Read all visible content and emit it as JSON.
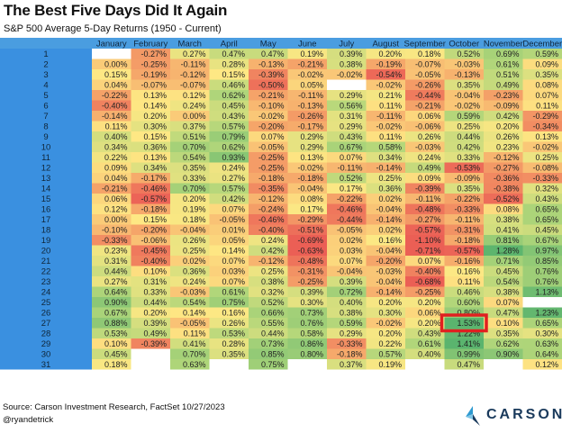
{
  "title": "The Best Five Days Did It Again",
  "subtitle": "S&P 500 Average 5-Day Returns (1950 - Current)",
  "footer": {
    "source": "Source: Carson Investment Research, FactSet 10/27/2023",
    "handle": "@ryandetrick",
    "logo_text": "CARSON"
  },
  "colors": {
    "header_bg": "#4a9de0",
    "daycol_bg": "#3a90e0",
    "highlight_border": "#e02020"
  },
  "chart_data": {
    "type": "heatmap",
    "title": "The Best Five Days Did It Again",
    "subtitle": "S&P 500 Average 5-Day Returns (1950 - Current)",
    "months": [
      "January",
      "February",
      "March",
      "April",
      "May",
      "June",
      "July",
      "August",
      "September",
      "October",
      "November",
      "December"
    ],
    "days": [
      "1",
      "2",
      "3",
      "4",
      "5",
      "6",
      "7",
      "8",
      "9",
      "10",
      "11",
      "12",
      "13",
      "14",
      "15",
      "16",
      "17",
      "18",
      "19",
      "20",
      "21",
      "22",
      "23",
      "24",
      "25",
      "26",
      "27",
      "28",
      "29",
      "30",
      "31"
    ],
    "values": [
      [
        null,
        -0.27,
        0.27,
        0.47,
        0.47,
        0.19,
        0.39,
        0.2,
        0.18,
        0.52,
        0.69,
        0.59
      ],
      [
        0.0,
        -0.25,
        -0.11,
        0.28,
        -0.13,
        -0.21,
        0.38,
        -0.19,
        -0.07,
        -0.03,
        0.61,
        0.09
      ],
      [
        0.15,
        -0.19,
        -0.12,
        0.15,
        -0.39,
        -0.02,
        -0.02,
        -0.54,
        -0.05,
        -0.13,
        0.51,
        0.35
      ],
      [
        0.04,
        -0.07,
        -0.07,
        0.46,
        -0.5,
        0.05,
        null,
        -0.02,
        -0.26,
        0.35,
        0.49,
        0.08
      ],
      [
        -0.22,
        0.13,
        0.12,
        0.62,
        -0.21,
        -0.11,
        0.29,
        0.21,
        -0.44,
        -0.04,
        -0.23,
        0.07
      ],
      [
        -0.4,
        0.14,
        0.24,
        0.45,
        -0.1,
        -0.13,
        0.56,
        0.11,
        -0.21,
        -0.02,
        -0.09,
        0.11
      ],
      [
        -0.14,
        0.2,
        0.0,
        0.43,
        -0.02,
        -0.26,
        0.31,
        -0.11,
        0.06,
        0.59,
        0.42,
        -0.29
      ],
      [
        0.11,
        0.3,
        0.37,
        0.57,
        -0.2,
        -0.17,
        0.29,
        -0.02,
        -0.06,
        0.25,
        0.2,
        -0.34
      ],
      [
        0.4,
        0.15,
        0.51,
        0.79,
        0.07,
        0.29,
        0.43,
        0.11,
        0.26,
        0.44,
        0.26,
        0.13
      ],
      [
        0.34,
        0.36,
        0.7,
        0.62,
        -0.05,
        0.29,
        0.67,
        0.58,
        -0.03,
        0.42,
        0.23,
        -0.02
      ],
      [
        0.22,
        0.13,
        0.54,
        0.93,
        -0.25,
        0.13,
        0.07,
        0.34,
        0.24,
        0.33,
        -0.12,
        0.25
      ],
      [
        0.09,
        0.34,
        0.35,
        0.24,
        -0.25,
        -0.02,
        -0.11,
        -0.14,
        0.49,
        -0.53,
        -0.27,
        -0.08
      ],
      [
        0.04,
        -0.17,
        0.33,
        0.27,
        -0.18,
        -0.18,
        0.52,
        0.25,
        0.09,
        -0.09,
        -0.36,
        -0.33
      ],
      [
        -0.21,
        -0.46,
        0.7,
        0.57,
        -0.35,
        -0.04,
        0.17,
        0.36,
        -0.39,
        0.35,
        -0.38,
        0.32
      ],
      [
        0.06,
        -0.57,
        0.2,
        0.42,
        -0.12,
        0.08,
        -0.22,
        0.02,
        -0.11,
        -0.22,
        -0.52,
        0.43
      ],
      [
        0.12,
        -0.18,
        0.19,
        0.07,
        -0.24,
        0.17,
        -0.46,
        -0.04,
        -0.48,
        -0.33,
        0.08,
        0.65
      ],
      [
        0.0,
        0.15,
        0.18,
        -0.05,
        -0.46,
        -0.29,
        -0.44,
        -0.14,
        -0.27,
        -0.11,
        0.38,
        0.65
      ],
      [
        -0.1,
        -0.2,
        -0.04,
        0.01,
        -0.4,
        -0.51,
        -0.05,
        0.02,
        -0.57,
        -0.31,
        0.41,
        0.45
      ],
      [
        -0.33,
        -0.06,
        0.26,
        0.05,
        0.24,
        -0.69,
        0.02,
        0.16,
        -1.1,
        -0.18,
        0.81,
        0.67
      ],
      [
        0.23,
        -0.45,
        0.25,
        0.14,
        0.42,
        -0.63,
        0.03,
        -0.04,
        -0.71,
        -0.57,
        1.28,
        0.97
      ],
      [
        0.31,
        -0.4,
        0.02,
        0.07,
        -0.12,
        -0.48,
        0.07,
        -0.2,
        0.07,
        -0.16,
        0.71,
        0.85
      ],
      [
        0.44,
        0.1,
        0.36,
        0.03,
        0.25,
        -0.31,
        -0.04,
        -0.03,
        -0.4,
        0.16,
        0.45,
        0.76
      ],
      [
        0.27,
        0.31,
        0.24,
        0.07,
        0.38,
        -0.25,
        0.39,
        -0.04,
        -0.68,
        0.11,
        0.54,
        0.76
      ],
      [
        0.64,
        0.33,
        -0.03,
        0.61,
        0.32,
        0.39,
        0.72,
        -0.14,
        -0.25,
        0.46,
        0.38,
        1.13
      ],
      [
        0.9,
        0.44,
        0.54,
        0.75,
        0.52,
        0.3,
        0.4,
        0.2,
        0.2,
        0.6,
        0.07,
        null
      ],
      [
        0.67,
        0.2,
        0.14,
        0.16,
        0.66,
        0.73,
        0.38,
        0.3,
        0.06,
        0.8,
        0.47,
        1.23
      ],
      [
        0.88,
        0.39,
        -0.05,
        0.26,
        0.55,
        0.76,
        0.59,
        -0.02,
        0.2,
        1.53,
        0.1,
        0.65
      ],
      [
        0.53,
        0.49,
        0.11,
        0.53,
        0.44,
        0.58,
        0.29,
        0.2,
        0.43,
        1.22,
        0.35,
        0.3
      ],
      [
        0.1,
        -0.39,
        0.41,
        0.28,
        0.73,
        0.86,
        -0.33,
        0.22,
        0.61,
        1.41,
        0.62,
        0.63
      ],
      [
        0.45,
        null,
        0.7,
        0.35,
        0.85,
        0.8,
        -0.18,
        0.57,
        0.4,
        0.99,
        0.9,
        0.64
      ],
      [
        0.18,
        null,
        0.63,
        null,
        0.75,
        null,
        0.37,
        0.19,
        null,
        0.47,
        null,
        0.12
      ]
    ],
    "highlight": {
      "day": "27",
      "month": "October",
      "value": 1.53
    },
    "value_format": "percent_2dp"
  }
}
